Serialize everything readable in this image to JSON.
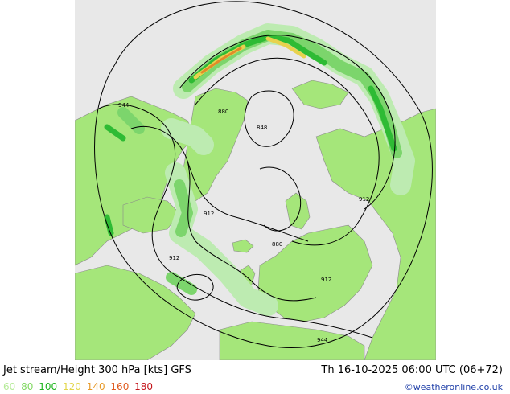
{
  "title": {
    "left": "Jet stream/Height 300 hPa [kts] GFS",
    "right": "Th 16-10-2025 06:00 UTC (06+72)"
  },
  "legend": {
    "values": [
      "60",
      "80",
      "100",
      "120",
      "140",
      "160",
      "180"
    ],
    "colors": [
      "#b7eb9a",
      "#7fd860",
      "#1fb51f",
      "#e3d64a",
      "#e79a2a",
      "#e05a1e",
      "#c4161c"
    ]
  },
  "contour_labels": [
    "944",
    "880",
    "848",
    "912",
    "880",
    "912",
    "912",
    "912",
    "944"
  ],
  "credit": "©weatheronline.co.uk",
  "colors": {
    "ocean": "#e8e8e8",
    "land": "#a5e67a",
    "jet_light": "#bdebb1",
    "jet_mid": "#7cd56c",
    "jet_strong": "#2ebb34",
    "jet_core": "#e8d24e",
    "jet_max": "#e08b28"
  }
}
